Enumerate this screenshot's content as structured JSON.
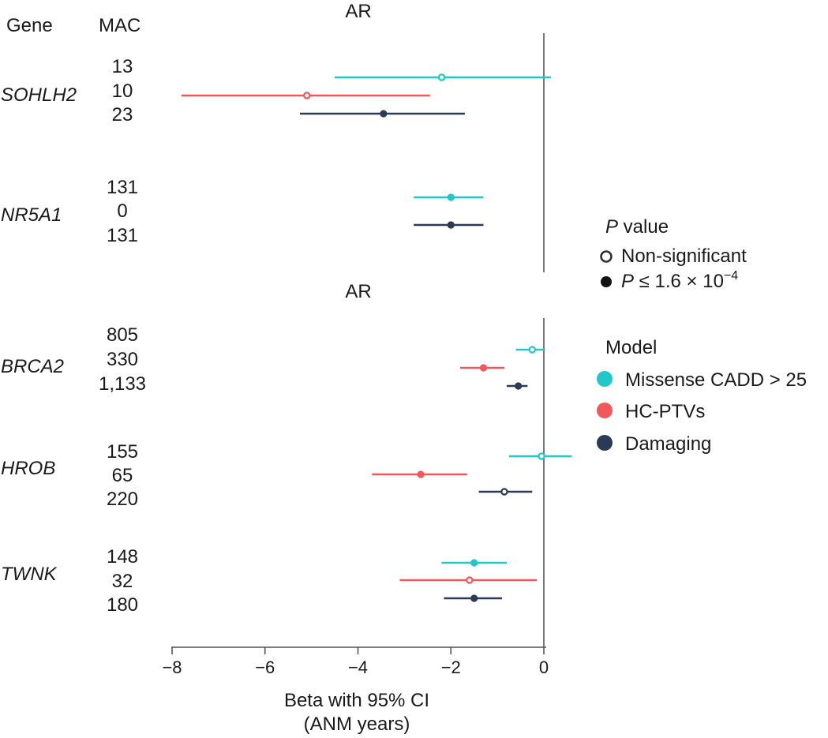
{
  "header": {
    "gene_label": "Gene",
    "mac_label": "MAC"
  },
  "legend": {
    "p_title_italic": "P",
    "p_title_rest": " value",
    "nonsig_label": "Non-significant",
    "sig_label_p": "P",
    "sig_label_rest": " ≤ 1.6 × 10",
    "sig_label_exp": "−4",
    "model_title": "Model",
    "models": [
      {
        "name": "Missense CADD > 25",
        "color": "#22c7c7"
      },
      {
        "name": "HC-PTVs",
        "color": "#f2575c"
      },
      {
        "name": "Damaging",
        "color": "#2b3a55"
      }
    ]
  },
  "chart_data": {
    "type": "forest",
    "xlabel_line1": "Beta with 95% CI",
    "xlabel_line2": "(ANM years)",
    "xlim": [
      -8,
      0
    ],
    "xticks": [
      -8,
      -6,
      -4,
      -2,
      0
    ],
    "xtick_labels": [
      "−8",
      "−6",
      "−4",
      "−2",
      "0"
    ],
    "colors": {
      "Missense CADD > 25": "#22c7c7",
      "HC-PTVs": "#f2575c",
      "Damaging": "#2b3a55"
    },
    "panels": [
      {
        "title": "AR",
        "genes": [
          {
            "gene": "SOHLH2",
            "rows": [
              {
                "model": "Missense CADD > 25",
                "mac": "13",
                "beta": -2.2,
                "lo": -4.5,
                "hi": 0.15,
                "significant": false
              },
              {
                "model": "HC-PTVs",
                "mac": "10",
                "beta": -5.1,
                "lo": -7.8,
                "hi": -2.45,
                "significant": false
              },
              {
                "model": "Damaging",
                "mac": "23",
                "beta": -3.45,
                "lo": -5.25,
                "hi": -1.7,
                "significant": true
              }
            ]
          },
          {
            "gene": "NR5A1",
            "rows": [
              {
                "model": "Missense CADD > 25",
                "mac": "131",
                "beta": -2.0,
                "lo": -2.8,
                "hi": -1.3,
                "significant": true
              },
              {
                "model": "HC-PTVs",
                "mac": "0",
                "beta": null,
                "lo": null,
                "hi": null,
                "significant": null
              },
              {
                "model": "Damaging",
                "mac": "131",
                "beta": -2.0,
                "lo": -2.8,
                "hi": -1.3,
                "significant": true
              }
            ]
          }
        ]
      },
      {
        "title": "AR",
        "genes": [
          {
            "gene": "BRCA2",
            "rows": [
              {
                "model": "Missense CADD > 25",
                "mac": "805",
                "beta": -0.25,
                "lo": -0.6,
                "hi": 0.0,
                "significant": false
              },
              {
                "model": "HC-PTVs",
                "mac": "330",
                "beta": -1.3,
                "lo": -1.8,
                "hi": -0.85,
                "significant": true
              },
              {
                "model": "Damaging",
                "mac": "1,133",
                "beta": -0.55,
                "lo": -0.8,
                "hi": -0.35,
                "significant": true
              }
            ]
          },
          {
            "gene": "HROB",
            "rows": [
              {
                "model": "Missense CADD > 25",
                "mac": "155",
                "beta": -0.05,
                "lo": -0.75,
                "hi": 0.6,
                "significant": false
              },
              {
                "model": "HC-PTVs",
                "mac": "65",
                "beta": -2.65,
                "lo": -3.7,
                "hi": -1.65,
                "significant": true
              },
              {
                "model": "Damaging",
                "mac": "220",
                "beta": -0.85,
                "lo": -1.4,
                "hi": -0.25,
                "significant": false
              }
            ]
          },
          {
            "gene": "TWNK",
            "rows": [
              {
                "model": "Missense CADD > 25",
                "mac": "148",
                "beta": -1.5,
                "lo": -2.2,
                "hi": -0.8,
                "significant": true
              },
              {
                "model": "HC-PTVs",
                "mac": "32",
                "beta": -1.6,
                "lo": -3.1,
                "hi": -0.15,
                "significant": false
              },
              {
                "model": "Damaging",
                "mac": "180",
                "beta": -1.5,
                "lo": -2.15,
                "hi": -0.9,
                "significant": true
              }
            ]
          }
        ]
      }
    ]
  }
}
